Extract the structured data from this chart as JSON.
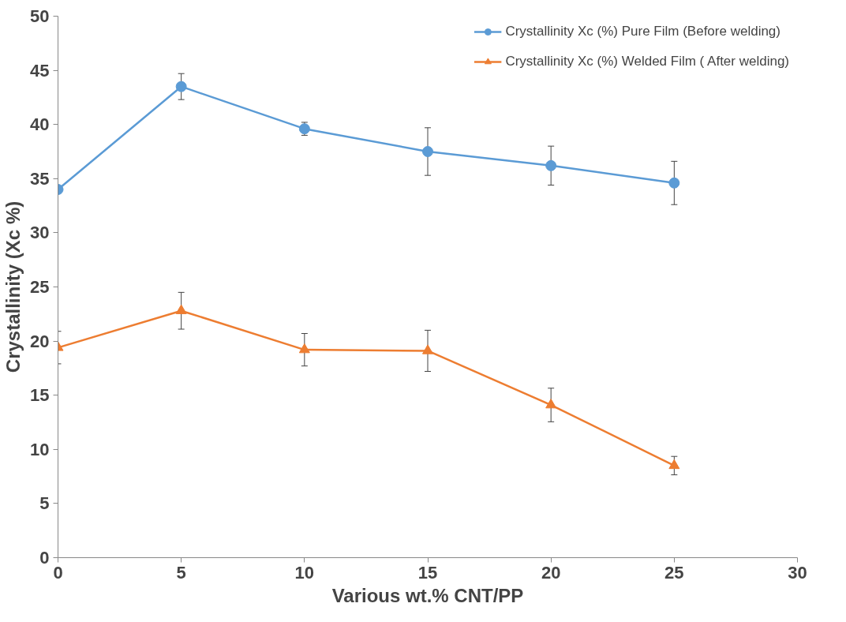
{
  "chart_data": {
    "type": "line",
    "xlabel": "Various wt.% CNT/PP",
    "ylabel": "Crystallinity (Xc %)",
    "x": [
      0,
      5,
      10,
      15,
      20,
      25
    ],
    "series": [
      {
        "name": "Crystallinity Xc (%) Pure Film (Before welding)",
        "color": "#5b9bd5",
        "marker": "circle",
        "values": [
          34.0,
          43.5,
          39.6,
          37.5,
          36.2,
          34.6
        ],
        "errors": [
          null,
          1.2,
          0.6,
          2.2,
          1.8,
          2.0
        ]
      },
      {
        "name": "Crystallinity Xc (%) Welded Film ( After welding)",
        "color": "#ed7d31",
        "marker": "triangle",
        "values": [
          19.4,
          22.8,
          19.2,
          19.1,
          14.1,
          8.5
        ],
        "errors": [
          1.5,
          1.7,
          1.5,
          1.9,
          1.55,
          0.85
        ]
      }
    ],
    "xlim": [
      0,
      30
    ],
    "xticks": [
      0,
      5,
      10,
      15,
      20,
      25,
      30
    ],
    "ylim": [
      0,
      50
    ],
    "yticks": [
      0,
      5,
      10,
      15,
      20,
      25,
      30,
      35,
      40,
      45,
      50
    ],
    "grid": false,
    "legend": "top right",
    "line_style": "solid"
  }
}
